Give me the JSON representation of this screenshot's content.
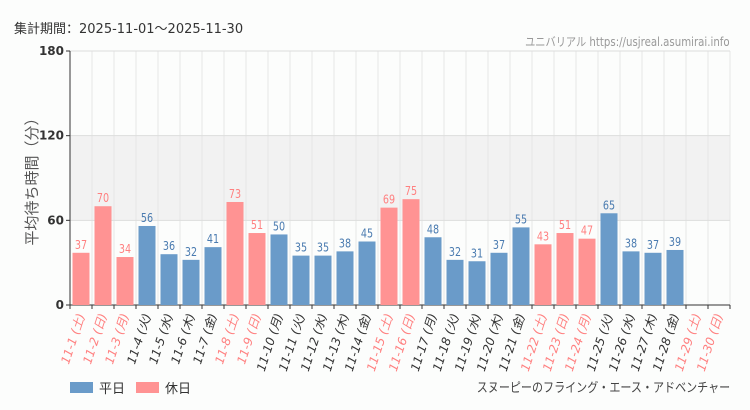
{
  "header": {
    "period": "集計期間：2025-11-01～2025-11-30",
    "credit": "ユニバリアル https://usjreal.asumirai.info"
  },
  "footer": {
    "attraction": "スヌーピーのフライング・エース・アドベンチャー"
  },
  "colors": {
    "weekday": "#6a9bc9",
    "holiday": "#ff9393",
    "weekday_text": "#333333",
    "holiday_text": "#ff8080",
    "band": "#f2f2f2"
  },
  "chart_data": {
    "type": "bar",
    "ylabel": "平均待ち時間（分）",
    "ylim": [
      0,
      180
    ],
    "yticks": [
      "0",
      "60",
      "120",
      "180"
    ],
    "grid": true,
    "legend_position": "bottom-left",
    "legend": [
      {
        "name": "平日",
        "type": "weekday"
      },
      {
        "name": "休日",
        "type": "holiday"
      }
    ],
    "categories": [
      "11-1 (土)",
      "11-2 (日)",
      "11-3 (月)",
      "11-4 (火)",
      "11-5 (水)",
      "11-6 (木)",
      "11-7 (金)",
      "11-8 (土)",
      "11-9 (日)",
      "11-10 (月)",
      "11-11 (火)",
      "11-12 (水)",
      "11-13 (木)",
      "11-14 (金)",
      "11-15 (土)",
      "11-16 (日)",
      "11-17 (月)",
      "11-18 (火)",
      "11-19 (水)",
      "11-20 (木)",
      "11-21 (金)",
      "11-22 (土)",
      "11-23 (日)",
      "11-24 (月)",
      "11-25 (火)",
      "11-26 (水)",
      "11-27 (木)",
      "11-28 (金)",
      "11-29 (土)",
      "11-30 (日)"
    ],
    "day_type": [
      "holiday",
      "holiday",
      "holiday",
      "weekday",
      "weekday",
      "weekday",
      "weekday",
      "holiday",
      "holiday",
      "weekday",
      "weekday",
      "weekday",
      "weekday",
      "weekday",
      "holiday",
      "holiday",
      "weekday",
      "weekday",
      "weekday",
      "weekday",
      "weekday",
      "holiday",
      "holiday",
      "holiday",
      "weekday",
      "weekday",
      "weekday",
      "weekday",
      "holiday",
      "holiday"
    ],
    "values": [
      37,
      70,
      34,
      56,
      36,
      32,
      41,
      73,
      51,
      50,
      35,
      35,
      38,
      45,
      69,
      75,
      48,
      32,
      31,
      37,
      55,
      43,
      51,
      47,
      65,
      38,
      37,
      39,
      null,
      null
    ]
  }
}
